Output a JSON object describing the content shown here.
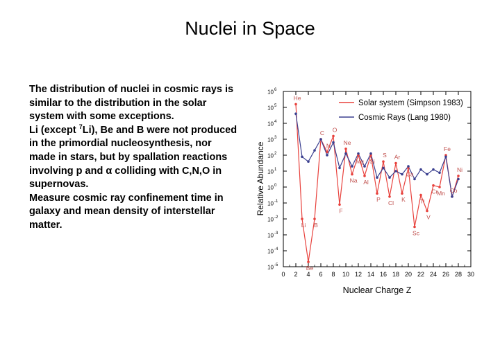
{
  "slide": {
    "title": "Nuclei in Space",
    "paragraphs": {
      "p1": "The distribution of nuclei in cosmic rays is similar to the distribution in the solar system with some exceptions.",
      "p2_start": "Li (except ",
      "p2_sup": "7",
      "p2_rest": "Li), Be and B were not produced in the primordial nucleosynthesis, nor made in stars, but by spallation reactions involving p and α colliding with C,N,O in supernovas.",
      "p3": "Measure cosmic ray confinement time in galaxy and mean density of interstellar matter."
    }
  },
  "chart_data": {
    "type": "line",
    "xlabel": "Nuclear Charge Z",
    "ylabel": "Relative Abundance",
    "xlim": [
      0,
      30
    ],
    "ylim_exp": [
      -5,
      6
    ],
    "yscale": "log",
    "x_ticks": [
      0,
      2,
      4,
      6,
      8,
      10,
      12,
      14,
      16,
      18,
      20,
      22,
      24,
      26,
      28,
      30
    ],
    "y_tick_exponents": [
      -5,
      -4,
      -3,
      -2,
      -1,
      0,
      1,
      2,
      3,
      4,
      5,
      6
    ],
    "y_tick_base": "10",
    "x": [
      2,
      3,
      4,
      5,
      6,
      7,
      8,
      9,
      10,
      11,
      12,
      13,
      14,
      15,
      16,
      17,
      18,
      19,
      20,
      21,
      22,
      23,
      24,
      25,
      26,
      27,
      28
    ],
    "series": [
      {
        "name": "Solar system (Simpson 1983)",
        "color": "#e8413c",
        "log10_values": [
          5.2,
          -2.0,
          -4.7,
          -2.0,
          3.0,
          2.2,
          3.2,
          -1.1,
          2.4,
          0.8,
          2.0,
          0.7,
          2.0,
          -0.4,
          1.6,
          -0.6,
          1.5,
          -0.4,
          1.2,
          -2.5,
          -0.5,
          -1.5,
          0.1,
          0.0,
          2.0,
          -0.6,
          0.7
        ]
      },
      {
        "name": "Cosmic Rays (Lang 1980)",
        "color": "#3a3f8f",
        "log10_values": [
          4.6,
          1.9,
          1.6,
          2.3,
          3.0,
          2.0,
          2.8,
          1.2,
          2.1,
          1.3,
          2.1,
          1.3,
          2.1,
          0.6,
          1.2,
          0.6,
          1.0,
          0.8,
          1.3,
          0.5,
          1.1,
          0.8,
          1.1,
          0.9,
          1.9,
          -0.6,
          0.5
        ]
      }
    ],
    "annotations": [
      {
        "text": "He",
        "x": 2
      },
      {
        "text": "Li",
        "x": 3
      },
      {
        "text": "Be",
        "x": 4
      },
      {
        "text": "B",
        "x": 5
      },
      {
        "text": "C",
        "x": 6
      },
      {
        "text": "N",
        "x": 7
      },
      {
        "text": "O",
        "x": 8
      },
      {
        "text": "F",
        "x": 9
      },
      {
        "text": "Ne",
        "x": 10
      },
      {
        "text": "Na",
        "x": 11
      },
      {
        "text": "Mg",
        "x": 12
      },
      {
        "text": "Al",
        "x": 13
      },
      {
        "text": "Si",
        "x": 14
      },
      {
        "text": "P",
        "x": 15
      },
      {
        "text": "S",
        "x": 16
      },
      {
        "text": "Cl",
        "x": 17
      },
      {
        "text": "Ar",
        "x": 18
      },
      {
        "text": "K",
        "x": 19
      },
      {
        "text": "Ca",
        "x": 20
      },
      {
        "text": "Sc",
        "x": 21
      },
      {
        "text": "Ti",
        "x": 22
      },
      {
        "text": "V",
        "x": 23
      },
      {
        "text": "Cr",
        "x": 24
      },
      {
        "text": "Mn",
        "x": 25
      },
      {
        "text": "Fe",
        "x": 26
      },
      {
        "text": "Co",
        "x": 27
      },
      {
        "text": "Ni",
        "x": 28
      }
    ],
    "legend_position": "top-right",
    "annotation_color": "#c0504d"
  }
}
